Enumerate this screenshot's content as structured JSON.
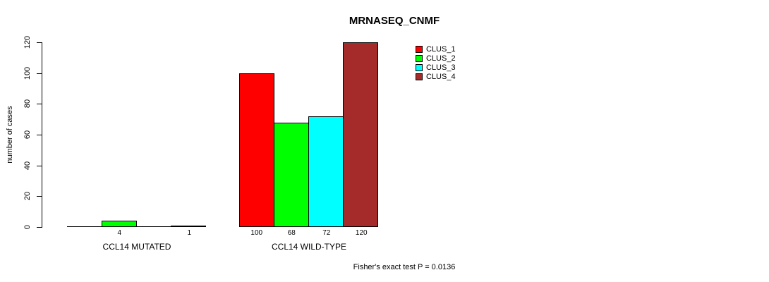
{
  "chart_data": {
    "type": "bar",
    "title": "MRNASEQ_CNMF",
    "ylabel": "number of cases",
    "ylim": [
      0,
      120
    ],
    "yticks": [
      0,
      20,
      40,
      60,
      80,
      100,
      120
    ],
    "categories": [
      "CCL14 MUTATED",
      "CCL14 WILD-TYPE"
    ],
    "series": [
      {
        "name": "CLUS_1",
        "color": "#FF0000",
        "values": [
          0,
          100
        ]
      },
      {
        "name": "CLUS_2",
        "color": "#00FF00",
        "values": [
          4,
          68
        ]
      },
      {
        "name": "CLUS_3",
        "color": "#00FFFF",
        "values": [
          0,
          72
        ]
      },
      {
        "name": "CLUS_4",
        "color": "#A52A2A",
        "values": [
          1,
          120
        ]
      }
    ],
    "bar_value_labels": [
      [
        "",
        "4",
        "",
        "1"
      ],
      [
        "100",
        "68",
        "72",
        "120"
      ]
    ],
    "annotation": "Fisher's exact test P = 0.0136",
    "legend_position": "inside-top-right",
    "grid": false,
    "background": "#FFFFFF"
  }
}
